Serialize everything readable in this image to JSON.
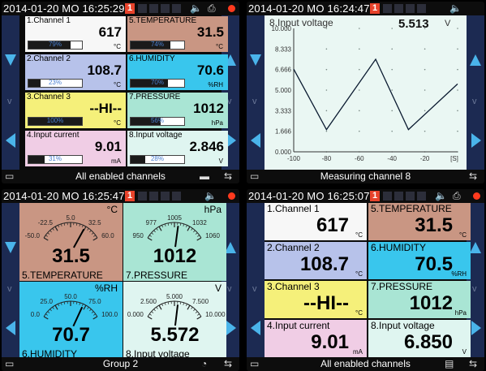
{
  "colors": {
    "accent": "#4ab4ea",
    "badge": "#e8432b",
    "nav": "#1c2a52",
    "record": "#ff3a1e"
  },
  "status_icons": [
    "speaker-icon",
    "memory-card-icon",
    "record-indicator"
  ],
  "q1": {
    "datetime": "2014-01-20 MO 16:25:29",
    "badge": "1",
    "footer": "All enabled channels",
    "channels": [
      {
        "name": "1.Channel 1",
        "value": "617",
        "unit": "°C",
        "bar": "79%",
        "fill": 0.79,
        "color": "#f7f7f7"
      },
      {
        "name": "5.TEMPERATURE",
        "value": "31.5",
        "unit": "°C",
        "bar": "74%",
        "fill": 0.74,
        "color": "#c99683"
      },
      {
        "name": "2.Channel 2",
        "value": "108.7",
        "unit": "°C",
        "bar": "23%",
        "fill": 0.23,
        "color": "#b7c2ea"
      },
      {
        "name": "6.HUMIDITY",
        "value": "70.6",
        "unit": "%RH",
        "bar": "70%",
        "fill": 0.7,
        "color": "#39c6ed"
      },
      {
        "name": "3.Channel 3",
        "value": "--HI--",
        "unit": "°C",
        "bar": "100%",
        "fill": 1.0,
        "color": "#f5f07a"
      },
      {
        "name": "7.PRESSURE",
        "value": "1012",
        "unit": "hPa",
        "bar": "56%",
        "fill": 0.56,
        "color": "#a9e5d4"
      },
      {
        "name": "4.Input current",
        "value": "9.01",
        "unit": "mA",
        "bar": "31%",
        "fill": 0.31,
        "color": "#f0cde5"
      },
      {
        "name": "8.Input voltage",
        "value": "2.846",
        "unit": "V",
        "bar": "28%",
        "fill": 0.28,
        "color": "#dff5f0"
      }
    ]
  },
  "q2": {
    "datetime": "2014-01-20 MO 16:24:47",
    "badge": "1",
    "footer": "Measuring channel 8",
    "chart_data": {
      "type": "line",
      "title": "8.Input voltage",
      "current_value": "5.513",
      "unit": "V",
      "x": [
        -100,
        -80,
        -50,
        -30,
        0
      ],
      "y": [
        6.7,
        1.8,
        7.5,
        1.8,
        5.5
      ],
      "xticks": [
        "-100",
        "-80",
        "-60",
        "-40",
        "-20"
      ],
      "xunit": "[S]",
      "yticks": [
        "10.000",
        "8.333",
        "6.666",
        "5.000",
        "3.333",
        "1.666",
        "0.000"
      ],
      "xlim": [
        -100,
        0
      ],
      "ylim": [
        0,
        10
      ],
      "grid": true
    }
  },
  "q3": {
    "datetime": "2014-01-20 MO 16:25:47",
    "badge": "1",
    "footer": "Group 2",
    "gauges": [
      {
        "name": "5.TEMPERATURE",
        "value": "31.5",
        "unit": "°C",
        "scale": [
          "-50.0",
          "-22.5",
          "5.0",
          "32.5",
          "60.0"
        ],
        "min": -50,
        "max": 60,
        "reading": 31.5,
        "color": "#c99683"
      },
      {
        "name": "7.PRESSURE",
        "value": "1012",
        "unit": "hPa",
        "scale": [
          "950",
          "977",
          "1005",
          "1032",
          "1060"
        ],
        "min": 950,
        "max": 1060,
        "reading": 1012,
        "color": "#a9e5d4"
      },
      {
        "name": "6.HUMIDITY",
        "value": "70.7",
        "unit": "%RH",
        "scale": [
          "0.0",
          "25.0",
          "50.0",
          "75.0",
          "100.0"
        ],
        "min": 0,
        "max": 100,
        "reading": 70.7,
        "color": "#39c6ed"
      },
      {
        "name": "8.Input voltage",
        "value": "5.572",
        "unit": "V",
        "scale": [
          "0.000",
          "2.500",
          "5.000",
          "7.500",
          "10.000"
        ],
        "min": 0,
        "max": 10,
        "reading": 5.572,
        "color": "#dff5f0"
      }
    ]
  },
  "q4": {
    "datetime": "2014-01-20 MO 16:25:07",
    "badge": "1",
    "footer": "All enabled channels",
    "channels": [
      {
        "name": "1.Channel 1",
        "value": "617",
        "unit": "°C",
        "color": "#f7f7f7"
      },
      {
        "name": "5.TEMPERATURE",
        "value": "31.5",
        "unit": "°C",
        "color": "#c99683"
      },
      {
        "name": "2.Channel 2",
        "value": "108.7",
        "unit": "°C",
        "color": "#b7c2ea"
      },
      {
        "name": "6.HUMIDITY",
        "value": "70.5",
        "unit": "%RH",
        "color": "#39c6ed"
      },
      {
        "name": "3.Channel 3",
        "value": "--HI--",
        "unit": "°C",
        "color": "#f5f07a"
      },
      {
        "name": "7.PRESSURE",
        "value": "1012",
        "unit": "hPa",
        "color": "#a9e5d4"
      },
      {
        "name": "4.Input current",
        "value": "9.01",
        "unit": "mA",
        "color": "#f0cde5"
      },
      {
        "name": "8.Input voltage",
        "value": "6.850",
        "unit": "V",
        "color": "#dff5f0"
      }
    ]
  }
}
